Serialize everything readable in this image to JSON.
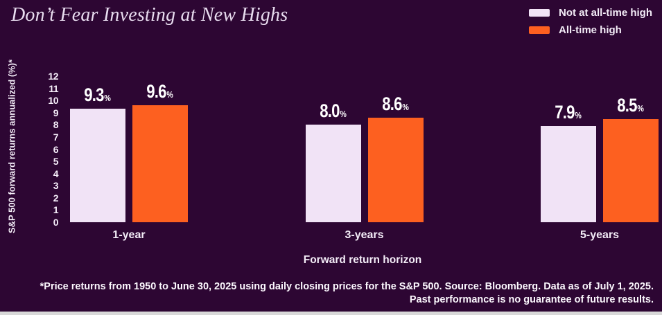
{
  "title": "Don’t Fear Investing at New Highs",
  "legend": [
    {
      "label": "Not at all-time high",
      "color": "#f1e3f6"
    },
    {
      "label": "All-time high",
      "color": "#fd6020"
    }
  ],
  "chart_data": {
    "type": "bar",
    "categories": [
      "1-year",
      "3-years",
      "5-years"
    ],
    "series": [
      {
        "name": "Not at all-time high",
        "color": "#f1e3f6",
        "values": [
          9.3,
          8.0,
          7.9
        ]
      },
      {
        "name": "All-time high",
        "color": "#fd6020",
        "values": [
          9.6,
          8.6,
          8.5
        ]
      }
    ],
    "value_suffix": "%",
    "value_decimals": 1,
    "title": "Don’t Fear Investing at New Highs",
    "xlabel": "Forward return horizon",
    "ylabel": "S&P 500 forward returns annualized (%)*",
    "ylim": [
      0,
      12
    ],
    "yticks": [
      0,
      1,
      2,
      3,
      4,
      5,
      6,
      7,
      8,
      9,
      10,
      11,
      12
    ],
    "grid": false,
    "legend_position": "top-right"
  },
  "footnote": {
    "line1": "*Price returns from 1950 to June 30, 2025 using daily closing prices for the S&P 500. Source: Bloomberg. Data as of July 1, 2025.",
    "line2": "Past performance is no guarantee of future results."
  },
  "colors": {
    "background": "#2d0633",
    "bar_not_at_high": "#f1e3f6",
    "bar_all_time_high": "#fd6020",
    "text": "#f3ecf7",
    "value_label": "#ffffff"
  }
}
